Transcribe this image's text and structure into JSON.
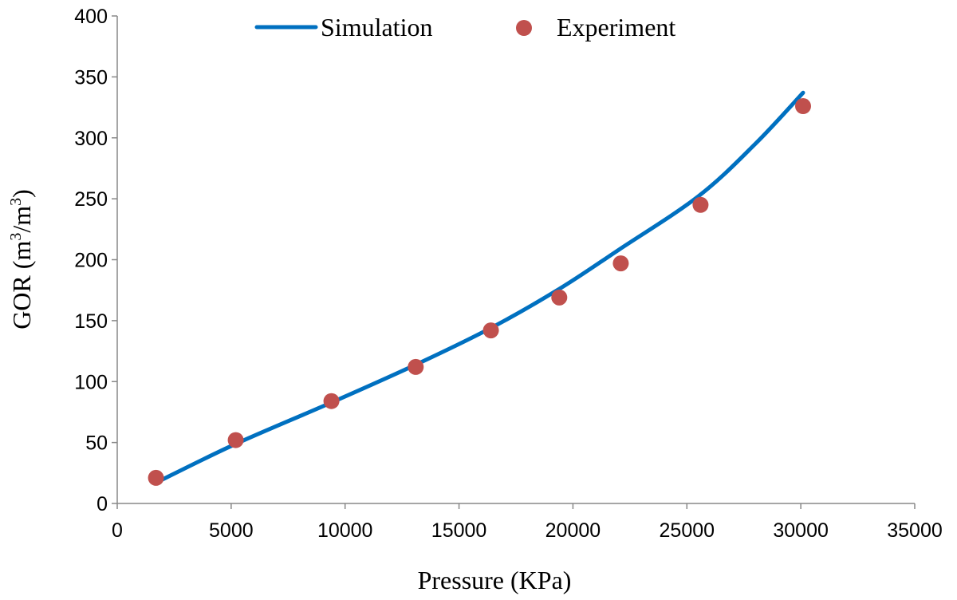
{
  "chart_data": {
    "type": "scatter",
    "xlabel": "Pressure (KPa)",
    "ylabel": {
      "base": "GOR (m",
      "sup1": "3",
      "mid": "/m",
      "sup2": "3",
      "end": ")"
    },
    "xlim": [
      0,
      35000
    ],
    "ylim": [
      0,
      400
    ],
    "xticks": [
      0,
      5000,
      10000,
      15000,
      20000,
      25000,
      30000,
      35000
    ],
    "yticks": [
      0,
      50,
      100,
      150,
      200,
      250,
      300,
      350,
      400
    ],
    "grid": false,
    "legend_position": "top",
    "series": [
      {
        "name": "Simulation",
        "kind": "line",
        "color": "#0070c0",
        "x": [
          1700,
          5100,
          9300,
          13000,
          16400,
          19400,
          22000,
          25500,
          28000,
          30100
        ],
        "y": [
          17,
          48,
          82,
          113,
          144,
          176,
          208,
          252,
          295,
          337
        ]
      },
      {
        "name": "Experiment",
        "kind": "scatter",
        "color": "#c0504d",
        "x": [
          1700,
          5200,
          9400,
          13100,
          16400,
          19400,
          22100,
          25600,
          30100
        ],
        "y": [
          21,
          52,
          84,
          112,
          142,
          169,
          197,
          245,
          326
        ]
      }
    ]
  }
}
